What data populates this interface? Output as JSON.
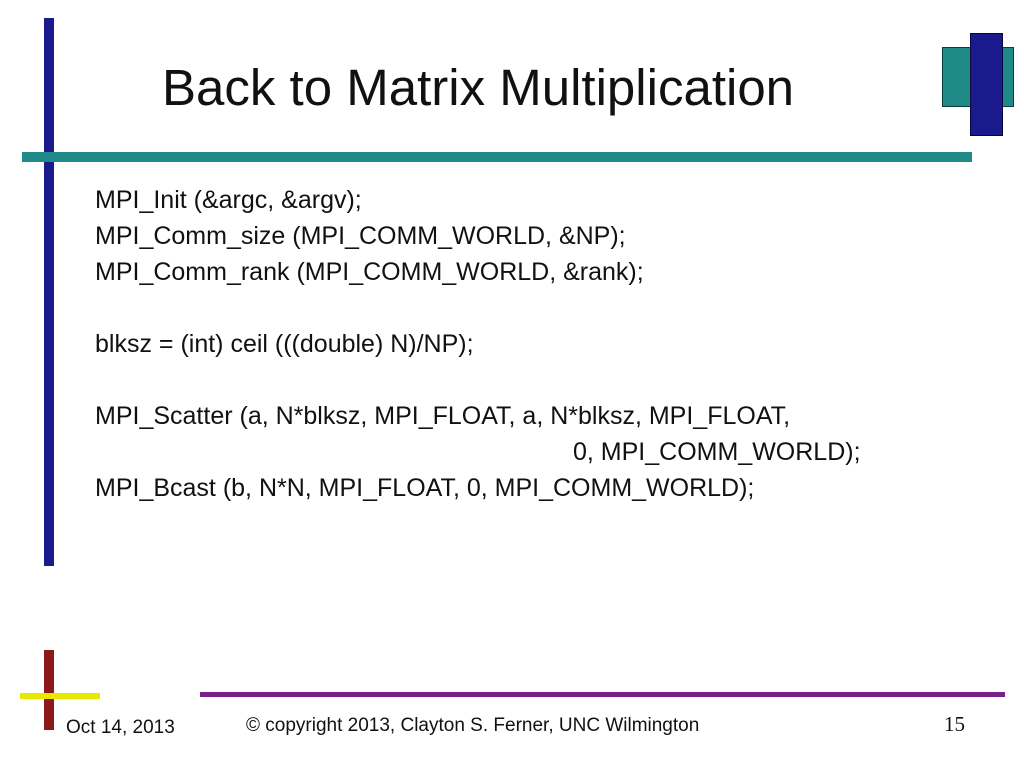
{
  "slide": {
    "title": "Back to Matrix Multiplication",
    "code_lines": [
      "MPI_Init (&argc, &argv);",
      "MPI_Comm_size (MPI_COMM_WORLD, &NP);",
      "MPI_Comm_rank (MPI_COMM_WORLD, &rank);",
      "",
      "blksz = (int) ceil (((double) N)/NP);",
      "",
      "MPI_Scatter (a, N*blksz, MPI_FLOAT, a, N*blksz, MPI_FLOAT,",
      "0, MPI_COMM_WORLD);",
      "MPI_Bcast (b, N*N, MPI_FLOAT, 0, MPI_COMM_WORLD);"
    ]
  },
  "footer": {
    "date": "Oct 14, 2013",
    "copyright": "© copyright 2013, Clayton S. Ferner, UNC Wilmington",
    "page_number": "15"
  },
  "colors": {
    "navy": "#1a1a8c",
    "teal": "#1f8a87",
    "dark_red": "#8c1a1a",
    "yellow": "#e8e800",
    "purple": "#7b1f8a"
  }
}
